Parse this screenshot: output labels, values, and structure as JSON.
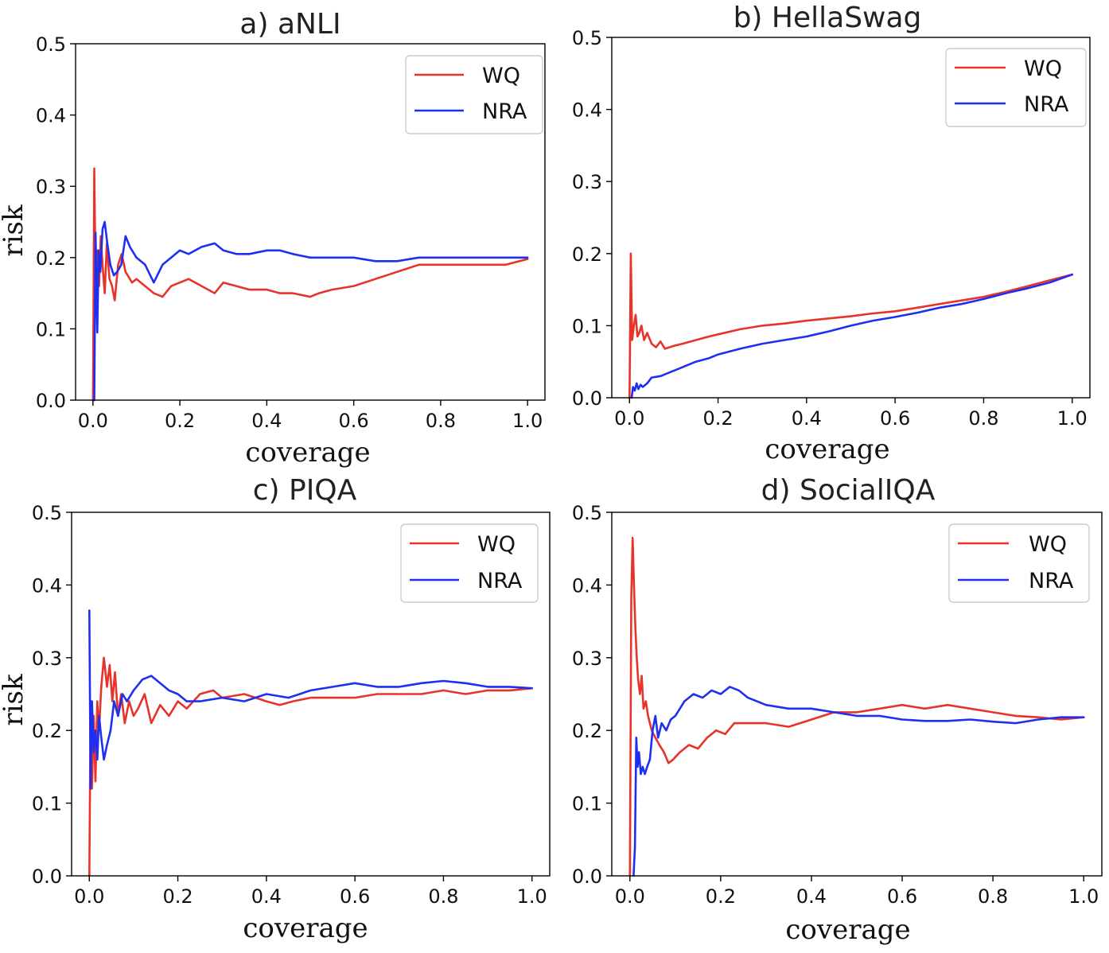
{
  "chart_data": [
    {
      "type": "line",
      "title": "a) aNLI",
      "xlabel": "coverage",
      "ylabel": "risk",
      "xlim": [
        -0.04,
        1.04
      ],
      "ylim": [
        0.0,
        0.5
      ],
      "xticks": [
        "0.0",
        "0.2",
        "0.4",
        "0.6",
        "0.8",
        "1.0"
      ],
      "yticks": [
        "0.0",
        "0.1",
        "0.2",
        "0.3",
        "0.4",
        "0.5"
      ],
      "legend": "top-right",
      "series": [
        {
          "name": "WQ",
          "color": "#e8332a",
          "x": [
            0.0,
            0.003,
            0.006,
            0.01,
            0.014,
            0.018,
            0.022,
            0.027,
            0.032,
            0.038,
            0.044,
            0.05,
            0.058,
            0.066,
            0.075,
            0.09,
            0.1,
            0.12,
            0.14,
            0.16,
            0.18,
            0.2,
            0.22,
            0.25,
            0.28,
            0.3,
            0.33,
            0.36,
            0.4,
            0.43,
            0.46,
            0.5,
            0.52,
            0.55,
            0.6,
            0.65,
            0.7,
            0.75,
            0.8,
            0.85,
            0.9,
            0.95,
            1.0
          ],
          "y": [
            0.0,
            0.325,
            0.17,
            0.21,
            0.16,
            0.23,
            0.19,
            0.15,
            0.22,
            0.17,
            0.16,
            0.14,
            0.19,
            0.205,
            0.18,
            0.165,
            0.17,
            0.16,
            0.15,
            0.145,
            0.16,
            0.165,
            0.17,
            0.16,
            0.15,
            0.165,
            0.16,
            0.155,
            0.155,
            0.15,
            0.15,
            0.145,
            0.15,
            0.155,
            0.16,
            0.17,
            0.18,
            0.19,
            0.19,
            0.19,
            0.19,
            0.19,
            0.198
          ]
        },
        {
          "name": "NRA",
          "color": "#1f2ff0",
          "x": [
            0.003,
            0.006,
            0.01,
            0.013,
            0.017,
            0.022,
            0.027,
            0.033,
            0.04,
            0.048,
            0.056,
            0.065,
            0.075,
            0.085,
            0.1,
            0.12,
            0.14,
            0.16,
            0.18,
            0.2,
            0.22,
            0.25,
            0.28,
            0.3,
            0.33,
            0.36,
            0.4,
            0.43,
            0.46,
            0.5,
            0.55,
            0.6,
            0.65,
            0.7,
            0.75,
            0.8,
            0.85,
            0.9,
            0.95,
            1.0
          ],
          "y": [
            0.0,
            0.235,
            0.095,
            0.21,
            0.18,
            0.24,
            0.25,
            0.22,
            0.19,
            0.175,
            0.18,
            0.19,
            0.23,
            0.215,
            0.2,
            0.19,
            0.165,
            0.19,
            0.2,
            0.21,
            0.205,
            0.215,
            0.22,
            0.21,
            0.205,
            0.205,
            0.21,
            0.21,
            0.205,
            0.2,
            0.2,
            0.2,
            0.195,
            0.195,
            0.2,
            0.2,
            0.2,
            0.2,
            0.2,
            0.2
          ]
        }
      ]
    },
    {
      "type": "line",
      "title": "b) HellaSwag",
      "xlabel": "coverage",
      "ylabel": "",
      "xlim": [
        -0.04,
        1.04
      ],
      "ylim": [
        0.0,
        0.5
      ],
      "xticks": [
        "0.0",
        "0.2",
        "0.4",
        "0.6",
        "0.8",
        "1.0"
      ],
      "yticks": [
        "0.0",
        "0.1",
        "0.2",
        "0.3",
        "0.4",
        "0.5"
      ],
      "legend": "top-right",
      "series": [
        {
          "name": "WQ",
          "color": "#e8332a",
          "x": [
            0.0,
            0.003,
            0.006,
            0.01,
            0.014,
            0.018,
            0.022,
            0.027,
            0.033,
            0.04,
            0.05,
            0.06,
            0.07,
            0.08,
            0.1,
            0.12,
            0.15,
            0.18,
            0.2,
            0.25,
            0.3,
            0.35,
            0.4,
            0.45,
            0.5,
            0.55,
            0.6,
            0.65,
            0.7,
            0.75,
            0.8,
            0.85,
            0.9,
            0.95,
            1.0
          ],
          "y": [
            0.0,
            0.2,
            0.08,
            0.1,
            0.115,
            0.085,
            0.09,
            0.1,
            0.08,
            0.09,
            0.075,
            0.07,
            0.078,
            0.068,
            0.072,
            0.075,
            0.08,
            0.085,
            0.088,
            0.095,
            0.1,
            0.103,
            0.107,
            0.11,
            0.113,
            0.117,
            0.12,
            0.125,
            0.13,
            0.135,
            0.14,
            0.147,
            0.155,
            0.163,
            0.171
          ]
        },
        {
          "name": "NRA",
          "color": "#1f2ff0",
          "x": [
            0.005,
            0.008,
            0.012,
            0.016,
            0.02,
            0.025,
            0.03,
            0.04,
            0.05,
            0.07,
            0.09,
            0.11,
            0.13,
            0.15,
            0.18,
            0.2,
            0.25,
            0.3,
            0.35,
            0.4,
            0.45,
            0.5,
            0.55,
            0.6,
            0.65,
            0.7,
            0.75,
            0.8,
            0.85,
            0.9,
            0.95,
            1.0
          ],
          "y": [
            0.0,
            0.015,
            0.01,
            0.02,
            0.012,
            0.018,
            0.015,
            0.02,
            0.028,
            0.03,
            0.035,
            0.04,
            0.045,
            0.05,
            0.055,
            0.06,
            0.068,
            0.075,
            0.08,
            0.085,
            0.092,
            0.1,
            0.107,
            0.112,
            0.118,
            0.125,
            0.13,
            0.137,
            0.145,
            0.152,
            0.16,
            0.171
          ]
        }
      ]
    },
    {
      "type": "line",
      "title": "c) PIQA",
      "xlabel": "coverage",
      "ylabel": "risk",
      "xlim": [
        -0.04,
        1.04
      ],
      "ylim": [
        0.0,
        0.5
      ],
      "xticks": [
        "0.0",
        "0.2",
        "0.4",
        "0.6",
        "0.8",
        "1.0"
      ],
      "yticks": [
        "0.0",
        "0.1",
        "0.2",
        "0.3",
        "0.4",
        "0.5"
      ],
      "legend": "top-right",
      "series": [
        {
          "name": "WQ",
          "color": "#e8332a",
          "x": [
            0.0,
            0.003,
            0.006,
            0.01,
            0.014,
            0.018,
            0.022,
            0.027,
            0.033,
            0.04,
            0.046,
            0.052,
            0.058,
            0.065,
            0.072,
            0.08,
            0.09,
            0.1,
            0.11,
            0.125,
            0.14,
            0.16,
            0.18,
            0.2,
            0.22,
            0.25,
            0.28,
            0.3,
            0.35,
            0.4,
            0.43,
            0.46,
            0.5,
            0.55,
            0.6,
            0.65,
            0.7,
            0.75,
            0.8,
            0.85,
            0.9,
            0.95,
            1.0
          ],
          "y": [
            0.0,
            0.24,
            0.12,
            0.22,
            0.13,
            0.24,
            0.2,
            0.26,
            0.3,
            0.26,
            0.29,
            0.24,
            0.28,
            0.22,
            0.25,
            0.21,
            0.24,
            0.22,
            0.23,
            0.25,
            0.21,
            0.235,
            0.22,
            0.24,
            0.23,
            0.25,
            0.255,
            0.245,
            0.25,
            0.24,
            0.235,
            0.24,
            0.245,
            0.245,
            0.245,
            0.25,
            0.25,
            0.25,
            0.255,
            0.25,
            0.255,
            0.255,
            0.258
          ]
        },
        {
          "name": "NRA",
          "color": "#1f2ff0",
          "x": [
            0.0,
            0.003,
            0.006,
            0.01,
            0.014,
            0.018,
            0.022,
            0.027,
            0.033,
            0.04,
            0.048,
            0.056,
            0.065,
            0.075,
            0.085,
            0.1,
            0.12,
            0.14,
            0.16,
            0.18,
            0.2,
            0.22,
            0.25,
            0.3,
            0.35,
            0.4,
            0.45,
            0.5,
            0.55,
            0.6,
            0.65,
            0.7,
            0.75,
            0.8,
            0.85,
            0.9,
            0.95,
            1.0
          ],
          "y": [
            0.365,
            0.12,
            0.24,
            0.17,
            0.2,
            0.16,
            0.22,
            0.19,
            0.16,
            0.18,
            0.2,
            0.24,
            0.22,
            0.25,
            0.24,
            0.255,
            0.27,
            0.275,
            0.265,
            0.255,
            0.25,
            0.24,
            0.24,
            0.245,
            0.24,
            0.25,
            0.245,
            0.255,
            0.26,
            0.265,
            0.26,
            0.26,
            0.265,
            0.268,
            0.265,
            0.26,
            0.26,
            0.258
          ]
        }
      ]
    },
    {
      "type": "line",
      "title": "d) SocialIQA",
      "xlabel": "coverage",
      "ylabel": "",
      "xlim": [
        -0.04,
        1.04
      ],
      "ylim": [
        0.0,
        0.5
      ],
      "xticks": [
        "0.0",
        "0.2",
        "0.4",
        "0.6",
        "0.8",
        "1.0"
      ],
      "yticks": [
        "0.0",
        "0.1",
        "0.2",
        "0.3",
        "0.4",
        "0.5"
      ],
      "legend": "top-right",
      "series": [
        {
          "name": "WQ",
          "color": "#e8332a",
          "x": [
            0.0,
            0.003,
            0.006,
            0.009,
            0.012,
            0.015,
            0.018,
            0.022,
            0.026,
            0.03,
            0.035,
            0.04,
            0.048,
            0.056,
            0.065,
            0.075,
            0.085,
            0.095,
            0.11,
            0.13,
            0.15,
            0.17,
            0.19,
            0.21,
            0.23,
            0.25,
            0.3,
            0.35,
            0.4,
            0.45,
            0.5,
            0.55,
            0.6,
            0.65,
            0.7,
            0.75,
            0.8,
            0.85,
            0.9,
            0.95,
            1.0
          ],
          "y": [
            0.0,
            0.38,
            0.465,
            0.4,
            0.34,
            0.3,
            0.27,
            0.25,
            0.275,
            0.23,
            0.24,
            0.22,
            0.2,
            0.19,
            0.18,
            0.17,
            0.155,
            0.16,
            0.17,
            0.18,
            0.175,
            0.19,
            0.2,
            0.195,
            0.21,
            0.21,
            0.21,
            0.205,
            0.215,
            0.225,
            0.225,
            0.23,
            0.235,
            0.23,
            0.235,
            0.23,
            0.225,
            0.22,
            0.218,
            0.215,
            0.218
          ]
        },
        {
          "name": "NRA",
          "color": "#1f2ff0",
          "x": [
            0.008,
            0.011,
            0.014,
            0.017,
            0.02,
            0.024,
            0.028,
            0.033,
            0.038,
            0.044,
            0.05,
            0.056,
            0.062,
            0.07,
            0.08,
            0.09,
            0.1,
            0.11,
            0.12,
            0.14,
            0.16,
            0.18,
            0.2,
            0.22,
            0.24,
            0.26,
            0.28,
            0.3,
            0.35,
            0.4,
            0.45,
            0.5,
            0.55,
            0.6,
            0.65,
            0.7,
            0.75,
            0.8,
            0.85,
            0.9,
            0.95,
            1.0
          ],
          "y": [
            0.0,
            0.04,
            0.19,
            0.15,
            0.17,
            0.14,
            0.15,
            0.14,
            0.15,
            0.16,
            0.2,
            0.22,
            0.19,
            0.21,
            0.2,
            0.215,
            0.22,
            0.23,
            0.24,
            0.25,
            0.245,
            0.255,
            0.25,
            0.26,
            0.255,
            0.245,
            0.24,
            0.235,
            0.23,
            0.23,
            0.225,
            0.22,
            0.22,
            0.215,
            0.213,
            0.213,
            0.215,
            0.212,
            0.21,
            0.215,
            0.218,
            0.218
          ]
        }
      ]
    }
  ]
}
